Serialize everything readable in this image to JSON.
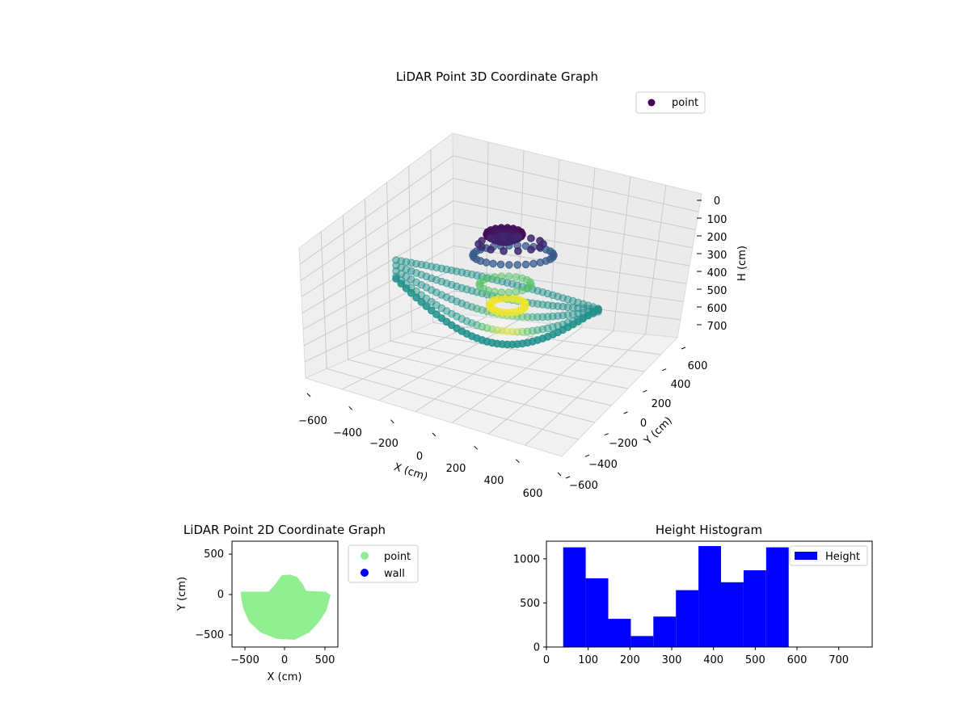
{
  "chart_data": [
    {
      "type": "scatter",
      "projection": "3d",
      "title": "LiDAR Point 3D Coordinate Graph",
      "xlabel": "X (cm)",
      "ylabel": "Y (cm)",
      "zlabel": "H (cm)",
      "xlim": [
        -700,
        700
      ],
      "ylim": [
        -700,
        700
      ],
      "zlim": [
        0,
        780
      ],
      "z_inverted": true,
      "xticks": [
        "−600",
        "−400",
        "−200",
        "0",
        "200",
        "400",
        "600"
      ],
      "yticks": [
        "−600",
        "−400",
        "−200",
        "0",
        "200",
        "400",
        "600"
      ],
      "zticks": [
        "0",
        "100",
        "200",
        "300",
        "400",
        "500",
        "600",
        "700"
      ],
      "colormap": "viridis",
      "legend": {
        "position": "top-right",
        "entries": [
          {
            "label": "point",
            "color": "#440154"
          }
        ]
      },
      "grid": true
    },
    {
      "type": "scatter",
      "title": "LiDAR Point 2D Coordinate Graph",
      "xlabel": "X (cm)",
      "ylabel": "Y (cm)",
      "xlim": [
        -650,
        650
      ],
      "ylim": [
        -650,
        650
      ],
      "xticks": [
        "−500",
        "0",
        "500"
      ],
      "yticks": [
        "−500",
        "0",
        "500"
      ],
      "series": [
        {
          "name": "point",
          "color": "#90ee90",
          "outline": [
            [
              -540,
              30
            ],
            [
              -200,
              30
            ],
            [
              -120,
              120
            ],
            [
              -40,
              230
            ],
            [
              60,
              240
            ],
            [
              150,
              210
            ],
            [
              220,
              120
            ],
            [
              260,
              40
            ],
            [
              500,
              30
            ],
            [
              560,
              -10
            ],
            [
              510,
              -200
            ],
            [
              420,
              -340
            ],
            [
              300,
              -470
            ],
            [
              120,
              -560
            ],
            [
              -100,
              -550
            ],
            [
              -300,
              -470
            ],
            [
              -440,
              -340
            ],
            [
              -510,
              -180
            ],
            [
              -540,
              -40
            ]
          ]
        },
        {
          "name": "wall",
          "color": "#0000ff",
          "outline": []
        }
      ],
      "legend": {
        "position": "outside-right",
        "entries": [
          {
            "label": "point",
            "color": "#90ee90"
          },
          {
            "label": "wall",
            "color": "#0000ff"
          }
        ]
      }
    },
    {
      "type": "bar",
      "subtype": "histogram",
      "title": "Height Histogram",
      "xlim": [
        0,
        780
      ],
      "ylim": [
        0,
        1200
      ],
      "xticks": [
        "0",
        "100",
        "200",
        "300",
        "400",
        "500",
        "600",
        "700"
      ],
      "yticks": [
        "0",
        "500",
        "1000"
      ],
      "bin_edges": [
        40,
        94,
        148,
        202,
        256,
        310,
        364,
        418,
        472,
        526,
        580
      ],
      "series": [
        {
          "name": "Height",
          "color": "#0000ff",
          "values": [
            1130,
            780,
            320,
            125,
            345,
            645,
            1145,
            735,
            870,
            1130
          ]
        }
      ],
      "legend": {
        "position": "top-right",
        "entries": [
          {
            "label": "Height",
            "color": "#0000ff"
          }
        ]
      }
    }
  ]
}
